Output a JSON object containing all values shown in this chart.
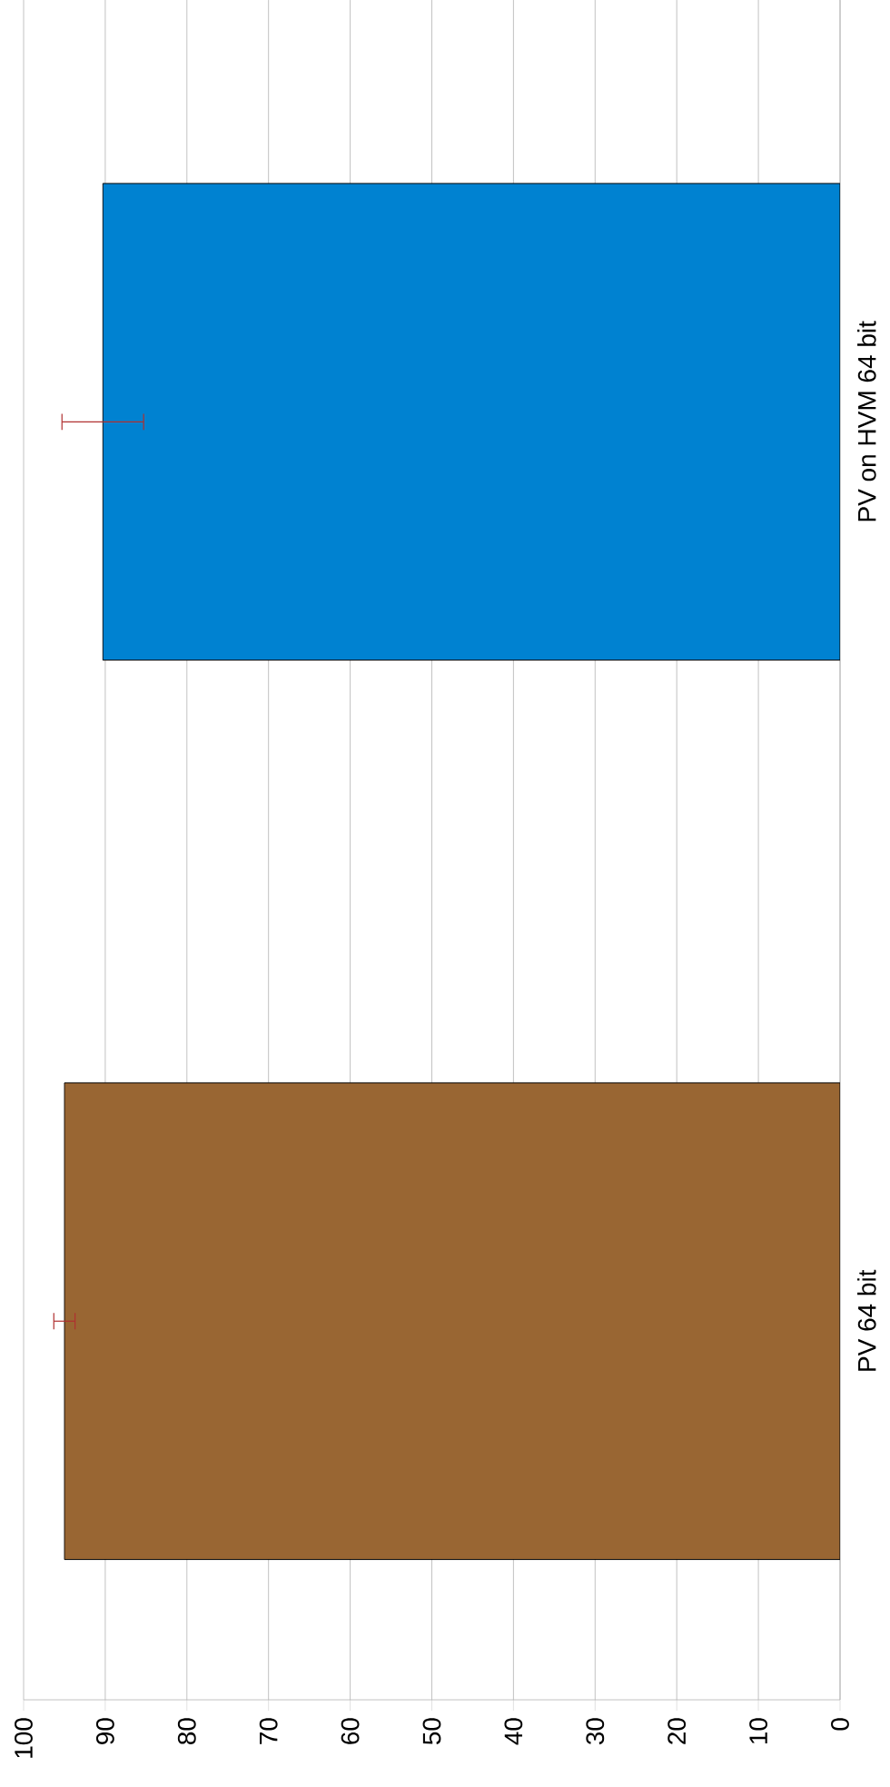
{
  "chart_data": {
    "type": "bar",
    "orientation": "horizontal",
    "categories": [
      "PV on HVM 64 bit",
      "PV 64 bit"
    ],
    "colors": [
      "#0082d1",
      "#996633"
    ],
    "values": [
      90.3,
      95
    ],
    "errors": [
      5,
      1.3
    ],
    "xlim": [
      100,
      0
    ],
    "xticks": [
      0,
      10,
      20,
      30,
      40,
      50,
      60,
      70,
      80,
      90,
      100
    ],
    "grid": "x"
  }
}
